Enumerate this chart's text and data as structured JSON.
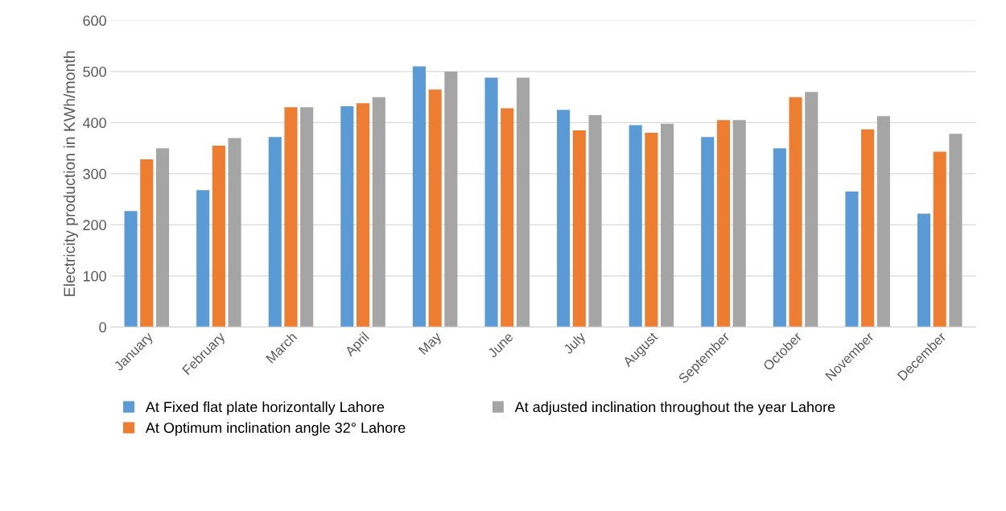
{
  "chart_data": {
    "type": "bar",
    "ylabel": "Electricity production in KWh/month",
    "categories": [
      "January",
      "February",
      "March",
      "April",
      "May",
      "June",
      "July",
      "August",
      "September",
      "October",
      "November",
      "December"
    ],
    "series": [
      {
        "name": "At Fixed flat plate horizontally Lahore",
        "color": "#5b9bd5",
        "values": [
          227,
          268,
          372,
          432,
          510,
          488,
          425,
          395,
          372,
          350,
          265,
          222
        ]
      },
      {
        "name": "At Optimum inclination angle 32° Lahore",
        "color": "#ed7d31",
        "values": [
          328,
          355,
          430,
          438,
          465,
          428,
          385,
          380,
          405,
          450,
          387,
          343
        ]
      },
      {
        "name": "At adjusted inclination throughout the year Lahore",
        "color": "#a5a5a5",
        "values": [
          350,
          370,
          430,
          450,
          500,
          488,
          415,
          398,
          405,
          460,
          413,
          378
        ]
      }
    ],
    "ylim": [
      0,
      600
    ],
    "yticks": [
      0,
      100,
      200,
      300,
      400,
      500,
      600
    ],
    "grid": "y",
    "legend": "bottom"
  }
}
